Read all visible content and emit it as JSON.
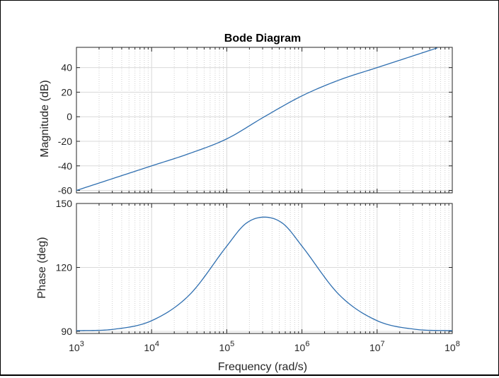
{
  "chart_data": {
    "type": "line",
    "title": "Bode Diagram",
    "xlabel": "Frequency  (rad/s)",
    "xscale": "log",
    "xlim": [
      1000,
      100000000
    ],
    "xticks": [
      {
        "value": 1000,
        "base": "10",
        "exp": "3"
      },
      {
        "value": 10000,
        "base": "10",
        "exp": "4"
      },
      {
        "value": 100000,
        "base": "10",
        "exp": "5"
      },
      {
        "value": 1000000,
        "base": "10",
        "exp": "6"
      },
      {
        "value": 10000000,
        "base": "10",
        "exp": "7"
      },
      {
        "value": 100000000,
        "base": "10",
        "exp": "8"
      }
    ],
    "grid": true,
    "line_color": "#2f6fb0",
    "panels": [
      {
        "name": "magnitude",
        "ylabel": "Magnitude (dB)",
        "ylim": [
          -62,
          56.5
        ],
        "yticks": [
          40,
          20,
          0,
          -20,
          -40,
          -60
        ],
        "ytick_labels": [
          "40",
          "20",
          "0",
          "-20",
          "-40",
          "-60"
        ],
        "x": [
          1000,
          3162,
          10000,
          31623,
          100000,
          316228,
          1000000,
          3162278,
          10000000,
          31622777,
          63095734
        ],
        "y": [
          -60,
          -50,
          -40,
          -30,
          -18,
          0,
          17,
          30,
          40,
          50,
          56
        ]
      },
      {
        "name": "phase",
        "ylabel": "Phase (deg)",
        "ylim": [
          89,
          150
        ],
        "yticks": [
          150,
          120,
          90
        ],
        "ytick_labels": [
          "150",
          "120",
          "90"
        ],
        "x": [
          1000,
          3162,
          10000,
          31623,
          100000,
          177828,
          316228,
          562341,
          1000000,
          3162278,
          10000000,
          31622777,
          100000000
        ],
        "y": [
          90.3,
          91,
          95,
          107,
          130,
          140.5,
          143.6,
          140.5,
          130,
          107,
          95,
          91,
          90.3
        ]
      }
    ]
  }
}
